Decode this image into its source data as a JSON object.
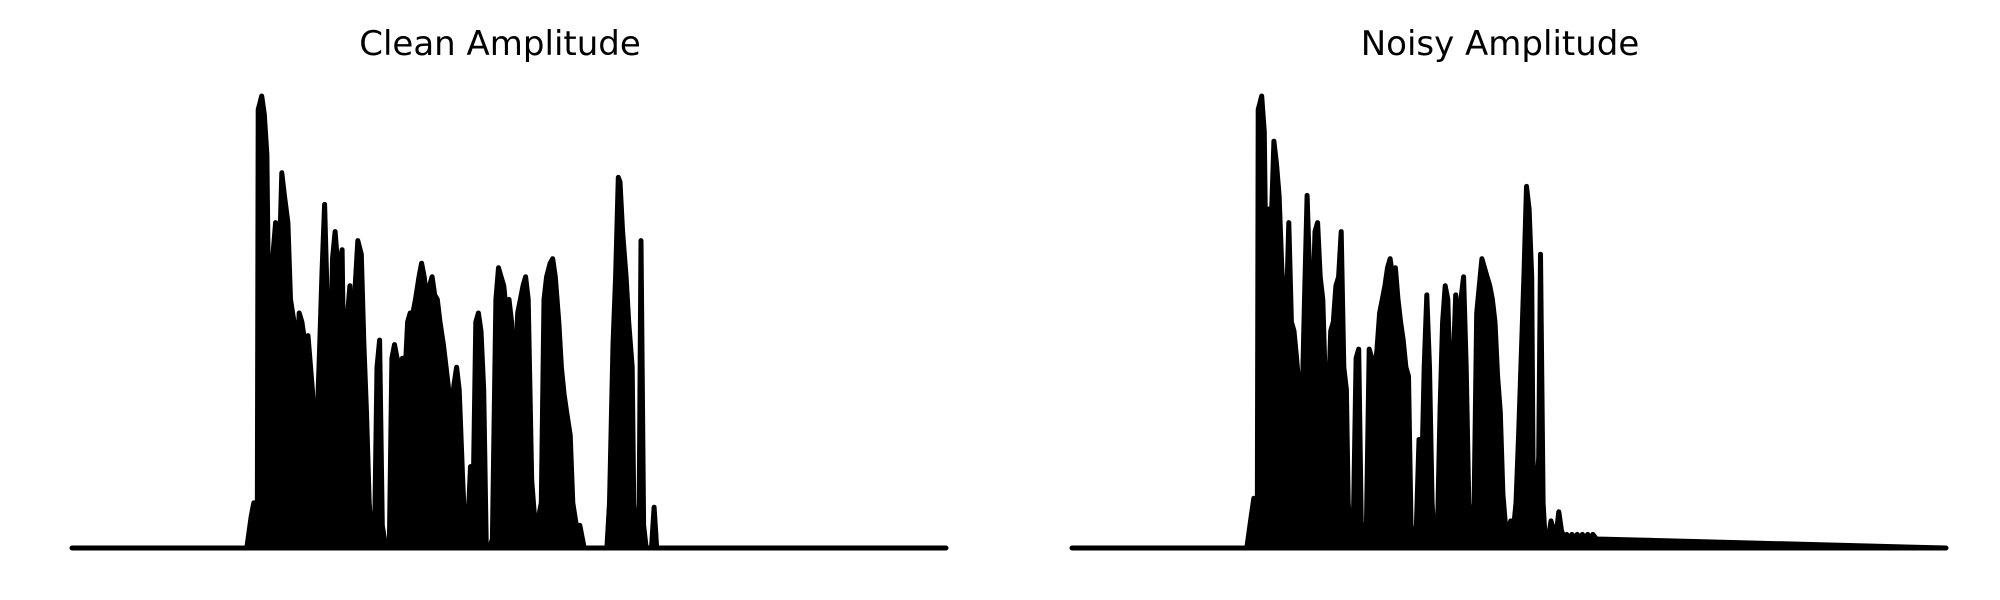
{
  "chart_data": [
    {
      "type": "area",
      "title": "Clean Amplitude",
      "xlabel": "",
      "ylabel": "",
      "axes_visible": false,
      "grid": false,
      "color": "#000000",
      "xlim": [
        0,
        1000
      ],
      "ylim": [
        0,
        1.0
      ],
      "envelope": [
        [
          0,
          0.0
        ],
        [
          200,
          0.0
        ],
        [
          205,
          0.07
        ],
        [
          208,
          0.1
        ],
        [
          212,
          0.05
        ],
        [
          213,
          0.97
        ],
        [
          217,
          1.0
        ],
        [
          220,
          0.96
        ],
        [
          223,
          0.87
        ],
        [
          226,
          0.35
        ],
        [
          230,
          0.65
        ],
        [
          233,
          0.72
        ],
        [
          236,
          0.55
        ],
        [
          240,
          0.83
        ],
        [
          243,
          0.78
        ],
        [
          247,
          0.72
        ],
        [
          250,
          0.55
        ],
        [
          254,
          0.5
        ],
        [
          256,
          0.35
        ],
        [
          260,
          0.52
        ],
        [
          263,
          0.5
        ],
        [
          266,
          0.46
        ],
        [
          270,
          0.47
        ],
        [
          275,
          0.35
        ],
        [
          279,
          0.2
        ],
        [
          283,
          0.42
        ],
        [
          286,
          0.61
        ],
        [
          289,
          0.76
        ],
        [
          292,
          0.55
        ],
        [
          295,
          0.3
        ],
        [
          298,
          0.64
        ],
        [
          301,
          0.7
        ],
        [
          305,
          0.6
        ],
        [
          309,
          0.66
        ],
        [
          312,
          0.25
        ],
        [
          315,
          0.51
        ],
        [
          318,
          0.58
        ],
        [
          321,
          0.41
        ],
        [
          324,
          0.58
        ],
        [
          327,
          0.68
        ],
        [
          331,
          0.65
        ],
        [
          334,
          0.45
        ],
        [
          337,
          0.3
        ],
        [
          340,
          0.1
        ],
        [
          343,
          0.02
        ],
        [
          346,
          0.0
        ],
        [
          349,
          0.4
        ],
        [
          352,
          0.46
        ],
        [
          355,
          0.05
        ],
        [
          359,
          0.0
        ],
        [
          363,
          0.0
        ],
        [
          366,
          0.42
        ],
        [
          369,
          0.45
        ],
        [
          372,
          0.42
        ],
        [
          375,
          0.4
        ],
        [
          378,
          0.42
        ],
        [
          381,
          0.38
        ],
        [
          384,
          0.5
        ],
        [
          387,
          0.52
        ],
        [
          390,
          0.52
        ],
        [
          393,
          0.55
        ],
        [
          397,
          0.6
        ],
        [
          400,
          0.63
        ],
        [
          403,
          0.6
        ],
        [
          406,
          0.55
        ],
        [
          409,
          0.58
        ],
        [
          412,
          0.6
        ],
        [
          415,
          0.56
        ],
        [
          418,
          0.55
        ],
        [
          421,
          0.5
        ],
        [
          425,
          0.45
        ],
        [
          428,
          0.4
        ],
        [
          431,
          0.35
        ],
        [
          434,
          0.3
        ],
        [
          437,
          0.36
        ],
        [
          440,
          0.4
        ],
        [
          443,
          0.35
        ],
        [
          447,
          0.15
        ],
        [
          450,
          0.02
        ],
        [
          453,
          0.05
        ],
        [
          456,
          0.18
        ],
        [
          459,
          0.12
        ],
        [
          462,
          0.5
        ],
        [
          465,
          0.52
        ],
        [
          468,
          0.48
        ],
        [
          471,
          0.35
        ],
        [
          474,
          0.0
        ],
        [
          478,
          0.0
        ],
        [
          481,
          0.02
        ],
        [
          485,
          0.55
        ],
        [
          488,
          0.62
        ],
        [
          491,
          0.6
        ],
        [
          494,
          0.58
        ],
        [
          497,
          0.52
        ],
        [
          500,
          0.55
        ],
        [
          503,
          0.5
        ],
        [
          506,
          0.35
        ],
        [
          510,
          0.52
        ],
        [
          513,
          0.55
        ],
        [
          516,
          0.58
        ],
        [
          519,
          0.6
        ],
        [
          522,
          0.55
        ],
        [
          526,
          0.15
        ],
        [
          530,
          0.05
        ],
        [
          534,
          0.07
        ],
        [
          537,
          0.1
        ],
        [
          540,
          0.55
        ],
        [
          543,
          0.6
        ],
        [
          547,
          0.63
        ],
        [
          550,
          0.64
        ],
        [
          553,
          0.6
        ],
        [
          557,
          0.5
        ],
        [
          560,
          0.4
        ],
        [
          563,
          0.34
        ],
        [
          566,
          0.3
        ],
        [
          570,
          0.25
        ],
        [
          573,
          0.1
        ],
        [
          577,
          0.05
        ],
        [
          581,
          0.05
        ],
        [
          586,
          0.0
        ],
        [
          600,
          0.0
        ],
        [
          612,
          0.0
        ],
        [
          615,
          0.1
        ],
        [
          619,
          0.45
        ],
        [
          622,
          0.6
        ],
        [
          625,
          0.82
        ],
        [
          627,
          0.81
        ],
        [
          630,
          0.7
        ],
        [
          634,
          0.6
        ],
        [
          637,
          0.5
        ],
        [
          641,
          0.4
        ],
        [
          643,
          0.05
        ],
        [
          646,
          0.0
        ],
        [
          649,
          0.1
        ],
        [
          651,
          0.68
        ],
        [
          654,
          0.05
        ],
        [
          657,
          0.0
        ],
        [
          663,
          0.0
        ],
        [
          666,
          0.09
        ],
        [
          669,
          0.0
        ],
        [
          675,
          0.0
        ],
        [
          1000,
          0.0
        ]
      ]
    },
    {
      "type": "area",
      "title": "Noisy Amplitude",
      "xlabel": "",
      "ylabel": "",
      "axes_visible": false,
      "grid": false,
      "color": "#000000",
      "xlim": [
        0,
        1000
      ],
      "ylim": [
        0,
        1.0
      ],
      "envelope": [
        [
          0,
          0.0
        ],
        [
          200,
          0.0
        ],
        [
          205,
          0.07
        ],
        [
          208,
          0.11
        ],
        [
          212,
          0.05
        ],
        [
          213,
          0.97
        ],
        [
          217,
          1.0
        ],
        [
          220,
          0.92
        ],
        [
          222,
          0.6
        ],
        [
          225,
          0.75
        ],
        [
          228,
          0.72
        ],
        [
          231,
          0.9
        ],
        [
          234,
          0.85
        ],
        [
          237,
          0.78
        ],
        [
          240,
          0.62
        ],
        [
          242,
          0.55
        ],
        [
          245,
          0.5
        ],
        [
          248,
          0.72
        ],
        [
          251,
          0.5
        ],
        [
          254,
          0.48
        ],
        [
          257,
          0.42
        ],
        [
          260,
          0.35
        ],
        [
          263,
          0.3
        ],
        [
          266,
          0.55
        ],
        [
          269,
          0.78
        ],
        [
          272,
          0.6
        ],
        [
          275,
          0.5
        ],
        [
          278,
          0.7
        ],
        [
          281,
          0.72
        ],
        [
          284,
          0.6
        ],
        [
          287,
          0.55
        ],
        [
          290,
          0.35
        ],
        [
          293,
          0.3
        ],
        [
          296,
          0.48
        ],
        [
          299,
          0.5
        ],
        [
          302,
          0.58
        ],
        [
          305,
          0.6
        ],
        [
          308,
          0.7
        ],
        [
          311,
          0.4
        ],
        [
          314,
          0.35
        ],
        [
          316,
          0.1
        ],
        [
          319,
          0.02
        ],
        [
          322,
          0.06
        ],
        [
          325,
          0.42
        ],
        [
          328,
          0.44
        ],
        [
          331,
          0.05
        ],
        [
          334,
          0.0
        ],
        [
          337,
          0.06
        ],
        [
          340,
          0.44
        ],
        [
          343,
          0.42
        ],
        [
          346,
          0.38
        ],
        [
          349,
          0.44
        ],
        [
          352,
          0.52
        ],
        [
          355,
          0.55
        ],
        [
          358,
          0.58
        ],
        [
          361,
          0.62
        ],
        [
          364,
          0.64
        ],
        [
          367,
          0.6
        ],
        [
          370,
          0.62
        ],
        [
          373,
          0.55
        ],
        [
          376,
          0.5
        ],
        [
          379,
          0.46
        ],
        [
          382,
          0.4
        ],
        [
          385,
          0.38
        ],
        [
          388,
          0.04
        ],
        [
          391,
          0.02
        ],
        [
          394,
          0.05
        ],
        [
          397,
          0.24
        ],
        [
          400,
          0.15
        ],
        [
          403,
          0.4
        ],
        [
          406,
          0.56
        ],
        [
          409,
          0.4
        ],
        [
          412,
          0.1
        ],
        [
          415,
          0.0
        ],
        [
          418,
          0.02
        ],
        [
          421,
          0.3
        ],
        [
          424,
          0.5
        ],
        [
          427,
          0.58
        ],
        [
          430,
          0.55
        ],
        [
          433,
          0.35
        ],
        [
          436,
          0.4
        ],
        [
          439,
          0.56
        ],
        [
          442,
          0.45
        ],
        [
          445,
          0.55
        ],
        [
          448,
          0.6
        ],
        [
          451,
          0.4
        ],
        [
          454,
          0.1
        ],
        [
          457,
          0.04
        ],
        [
          460,
          0.08
        ],
        [
          463,
          0.52
        ],
        [
          466,
          0.58
        ],
        [
          469,
          0.64
        ],
        [
          472,
          0.62
        ],
        [
          475,
          0.6
        ],
        [
          478,
          0.58
        ],
        [
          481,
          0.55
        ],
        [
          484,
          0.5
        ],
        [
          487,
          0.38
        ],
        [
          490,
          0.3
        ],
        [
          493,
          0.12
        ],
        [
          496,
          0.05
        ],
        [
          499,
          0.04
        ],
        [
          502,
          0.06
        ],
        [
          505,
          0.04
        ],
        [
          508,
          0.1
        ],
        [
          511,
          0.25
        ],
        [
          514,
          0.42
        ],
        [
          517,
          0.6
        ],
        [
          520,
          0.8
        ],
        [
          523,
          0.75
        ],
        [
          526,
          0.6
        ],
        [
          528,
          0.05
        ],
        [
          531,
          0.12
        ],
        [
          534,
          0.2
        ],
        [
          536,
          0.65
        ],
        [
          539,
          0.1
        ],
        [
          542,
          0.0
        ],
        [
          545,
          0.02
        ],
        [
          548,
          0.06
        ],
        [
          551,
          0.04
        ],
        [
          554,
          0.03
        ],
        [
          557,
          0.08
        ],
        [
          560,
          0.04
        ],
        [
          563,
          0.02
        ],
        [
          566,
          0.03
        ],
        [
          569,
          0.02
        ],
        [
          572,
          0.03
        ],
        [
          575,
          0.02
        ],
        [
          578,
          0.03
        ],
        [
          581,
          0.02
        ],
        [
          584,
          0.03
        ],
        [
          587,
          0.02
        ],
        [
          590,
          0.03
        ],
        [
          593,
          0.02
        ],
        [
          596,
          0.03
        ],
        [
          600,
          0.02
        ],
        [
          1000,
          0.0
        ]
      ]
    }
  ]
}
